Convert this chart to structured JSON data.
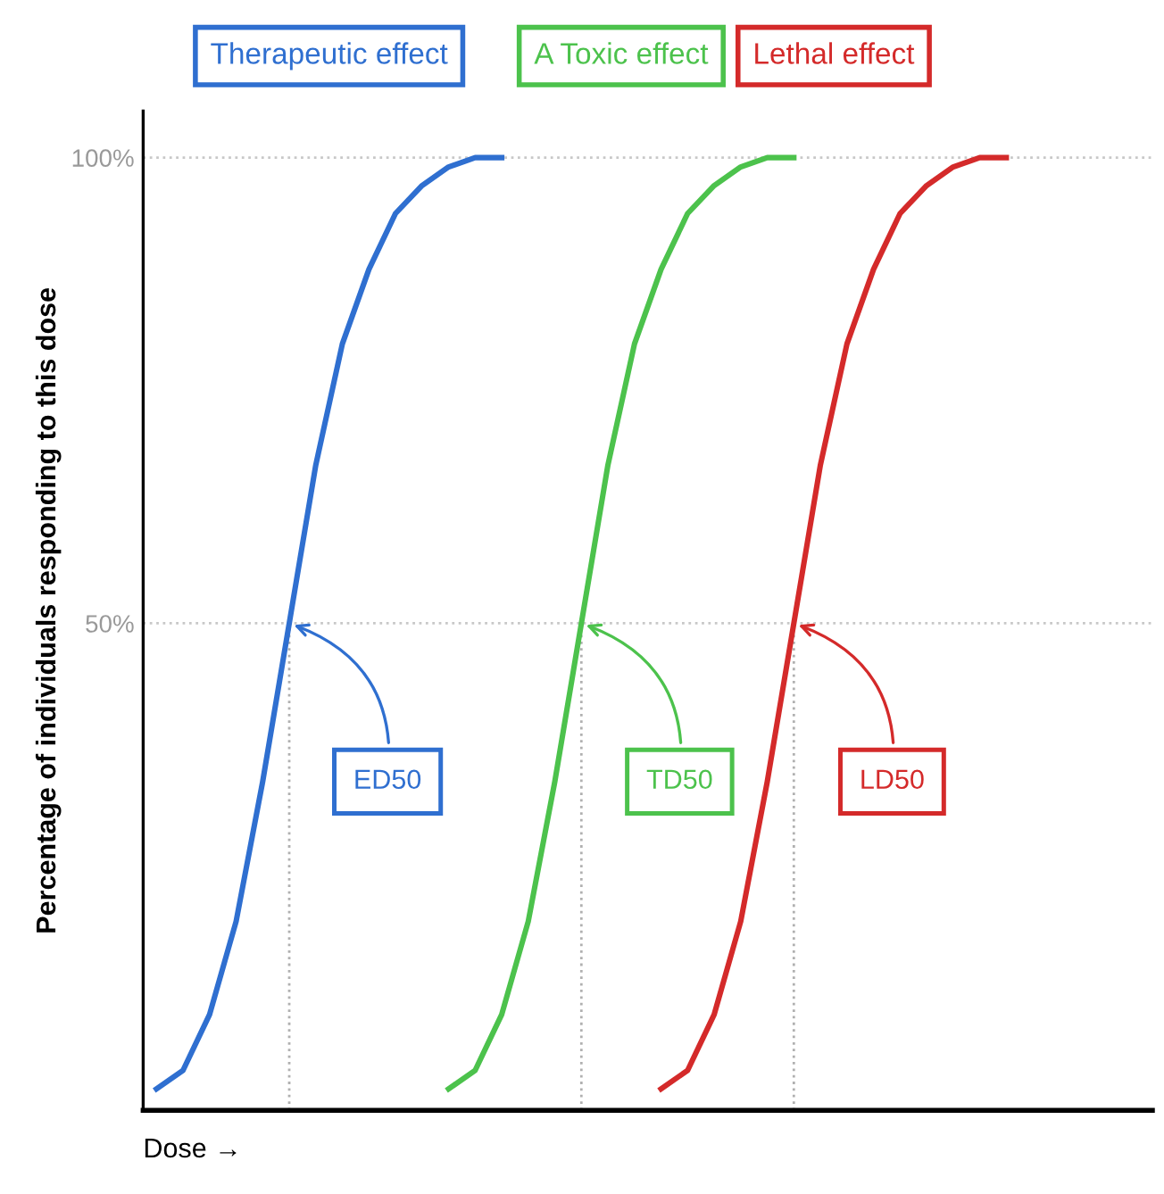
{
  "chart_data": {
    "type": "line",
    "ylabel": "Percentage of individuals responding to this dose",
    "xlabel": "Dose →",
    "categories": [
      null,
      null,
      null,
      null,
      null,
      null,
      null,
      null,
      null,
      null,
      null,
      null,
      null,
      null,
      null,
      null,
      null,
      null,
      null,
      null,
      null,
      null,
      null,
      null,
      null,
      null,
      null,
      null,
      null,
      null,
      null,
      null,
      null,
      null,
      null,
      null,
      null,
      null
    ],
    "ylim": [
      -2.3,
      105
    ],
    "yticks": [
      {
        "value": 50,
        "label": "50%"
      },
      {
        "value": 100,
        "label": "100%"
      }
    ],
    "tick_labels": "y",
    "series": [
      {
        "name": "Therapeutic effect",
        "color": "#2f6fd0",
        "values": [
          0,
          2,
          8,
          18,
          33,
          50,
          67,
          80,
          88,
          94,
          97,
          99,
          100,
          100,
          null,
          null,
          null,
          null,
          null,
          null,
          null,
          null,
          null,
          null,
          null,
          null,
          null,
          null,
          null,
          null,
          null,
          null,
          null,
          null,
          null,
          null,
          null,
          null
        ]
      },
      {
        "name": "A Toxic effect",
        "color": "#4cc24c",
        "values": [
          null,
          null,
          null,
          null,
          null,
          null,
          null,
          null,
          null,
          null,
          null,
          0,
          2,
          8,
          18,
          33,
          50,
          67,
          80,
          88,
          94,
          97,
          99,
          100,
          100,
          null,
          null,
          null,
          null,
          null,
          null,
          null,
          null,
          null,
          null,
          null,
          null,
          null
        ]
      },
      {
        "name": "Lethal effect",
        "color": "#d42a2a",
        "values": [
          null,
          null,
          null,
          null,
          null,
          null,
          null,
          null,
          null,
          null,
          null,
          null,
          null,
          null,
          null,
          null,
          null,
          null,
          null,
          0,
          2,
          8,
          18,
          33,
          50,
          67,
          80,
          88,
          94,
          97,
          99,
          100,
          100,
          null,
          null,
          null,
          null,
          null
        ]
      }
    ],
    "annotations": [
      "ED50",
      "TD50",
      "LD50"
    ],
    "ref_lines": [
      {
        "axis": "y",
        "value": 100,
        "color": "#c8c8c8",
        "line_style": "dotted"
      },
      {
        "axis": "y",
        "value": 50,
        "color": "#c8c8c8",
        "line_style": "dotted"
      }
    ],
    "grid": false,
    "legend": false,
    "line_style": "solid",
    "marker": "none"
  }
}
